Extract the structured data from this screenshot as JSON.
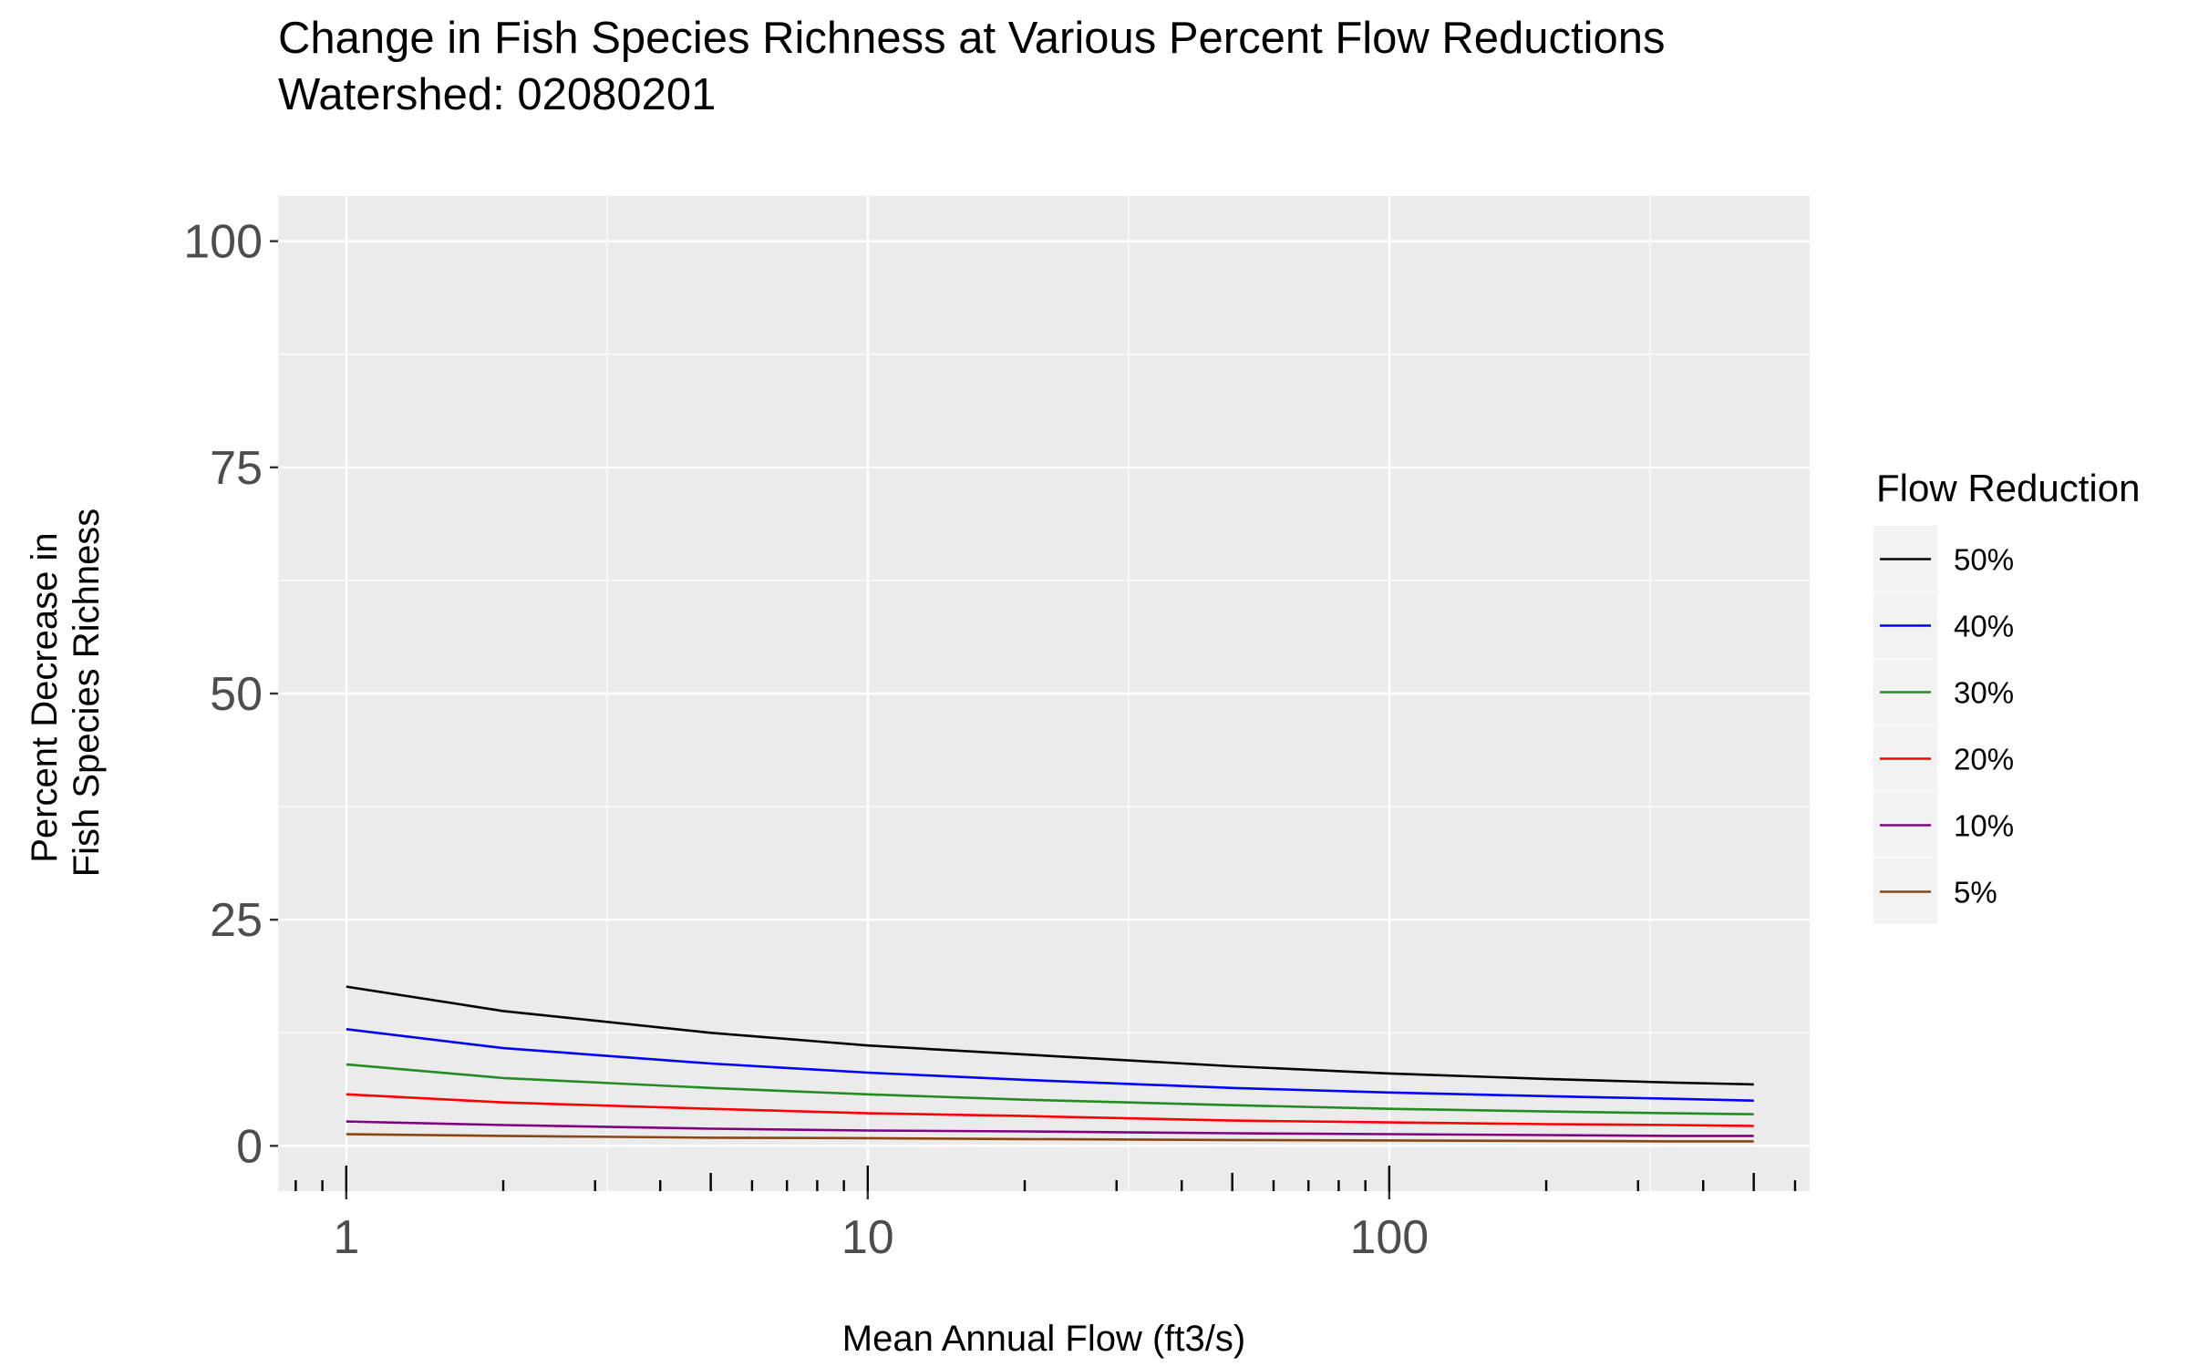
{
  "chart_data": {
    "type": "line",
    "title": "Change in Fish Species Richness at Various Percent Flow Reductions",
    "subtitle": "Watershed: 02080201",
    "xlabel": "Mean Annual Flow (ft3/s)",
    "ylabel": [
      "Percent Decrease in",
      "Fish Species Richness"
    ],
    "x_scale": "log10",
    "xlim": [
      0.74,
      640
    ],
    "ylim": [
      -5,
      105
    ],
    "x_ticks": [
      1,
      10,
      100
    ],
    "x_tick_labels": [
      "1",
      "10",
      "100"
    ],
    "y_ticks": [
      0,
      25,
      50,
      75,
      100
    ],
    "y_tick_labels": [
      "0",
      "25",
      "50",
      "75",
      "100"
    ],
    "grid": true,
    "legend": {
      "title": "Flow Reduction",
      "position": "right"
    },
    "x": [
      1,
      2,
      5,
      10,
      20,
      50,
      100,
      200,
      350,
      500
    ],
    "series": [
      {
        "name": "50%",
        "color": "#000000",
        "values": [
          17.6,
          14.9,
          12.5,
          11.1,
          10.1,
          8.8,
          8.0,
          7.4,
          7.0,
          6.8
        ]
      },
      {
        "name": "40%",
        "color": "#0000ff",
        "values": [
          12.9,
          10.8,
          9.1,
          8.1,
          7.3,
          6.4,
          5.9,
          5.5,
          5.2,
          5.0
        ]
      },
      {
        "name": "30%",
        "color": "#228b22",
        "values": [
          9.0,
          7.5,
          6.4,
          5.7,
          5.1,
          4.5,
          4.1,
          3.8,
          3.6,
          3.5
        ]
      },
      {
        "name": "20%",
        "color": "#ff0000",
        "values": [
          5.7,
          4.8,
          4.1,
          3.6,
          3.3,
          2.8,
          2.6,
          2.4,
          2.3,
          2.2
        ]
      },
      {
        "name": "10%",
        "color": "#800080",
        "values": [
          2.7,
          2.3,
          1.9,
          1.7,
          1.6,
          1.4,
          1.3,
          1.2,
          1.1,
          1.1
        ]
      },
      {
        "name": "5%",
        "color": "#8b4513",
        "values": [
          1.3,
          1.1,
          0.9,
          0.85,
          0.75,
          0.65,
          0.6,
          0.55,
          0.5,
          0.5
        ]
      }
    ]
  }
}
